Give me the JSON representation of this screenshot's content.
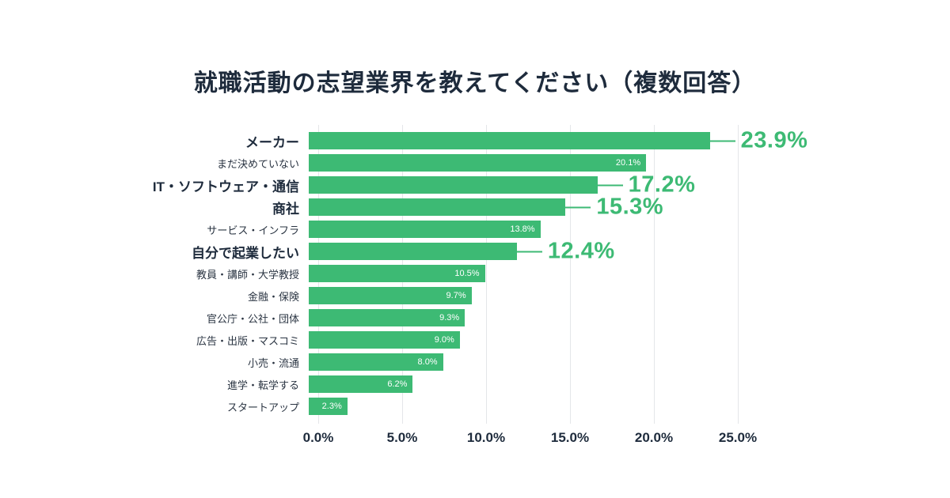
{
  "title": "就職活動の志望業界を教えてください（複数回答）",
  "chart_data": {
    "type": "bar",
    "orientation": "horizontal",
    "title": "就職活動の志望業界を教えてください（複数回答）",
    "xlabel": "",
    "ylabel": "",
    "xlim": [
      0,
      25
    ],
    "grid": true,
    "legend": false,
    "bar_color": "#3dba74",
    "highlight_text_color": "#3dba74",
    "gridline_color": "#e4e6e9",
    "title_color": "#1e2b3c",
    "x_ticks": [
      "0.0%",
      "5.0%",
      "10.0%",
      "15.0%",
      "20.0%",
      "25.0%"
    ],
    "x_tick_values": [
      0,
      5,
      10,
      15,
      20,
      25
    ],
    "rows": [
      {
        "label": "メーカー",
        "value": 23.9,
        "display": "23.9%",
        "highlight": true
      },
      {
        "label": "まだ決めていない",
        "value": 20.1,
        "display": "20.1%",
        "highlight": false
      },
      {
        "label": "IT・ソフトウェア・通信",
        "value": 17.2,
        "display": "17.2%",
        "highlight": true
      },
      {
        "label": "商社",
        "value": 15.3,
        "display": "15.3%",
        "highlight": true
      },
      {
        "label": "サービス・インフラ",
        "value": 13.8,
        "display": "13.8%",
        "highlight": false
      },
      {
        "label": "自分で起業したい",
        "value": 12.4,
        "display": "12.4%",
        "highlight": true
      },
      {
        "label": "教員・講師・大学教授",
        "value": 10.5,
        "display": "10.5%",
        "highlight": false
      },
      {
        "label": "金融・保険",
        "value": 9.7,
        "display": "9.7%",
        "highlight": false
      },
      {
        "label": "官公庁・公社・団体",
        "value": 9.3,
        "display": "9.3%",
        "highlight": false
      },
      {
        "label": "広告・出版・マスコミ",
        "value": 9.0,
        "display": "9.0%",
        "highlight": false
      },
      {
        "label": "小売・流通",
        "value": 8.0,
        "display": "8.0%",
        "highlight": false
      },
      {
        "label": "進学・転学する",
        "value": 6.2,
        "display": "6.2%",
        "highlight": false
      },
      {
        "label": "スタートアップ",
        "value": 2.3,
        "display": "2.3%",
        "highlight": false
      }
    ]
  }
}
